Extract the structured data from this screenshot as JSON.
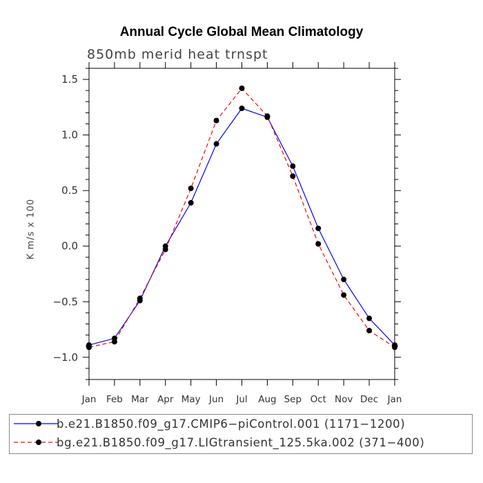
{
  "chart_data": {
    "type": "line",
    "title": "Annual Cycle Global Mean Climatology",
    "subtitle": "850mb merid heat trnspt",
    "xlabel": "",
    "ylabel": "K m/s x 100",
    "categories": [
      "Jan",
      "Feb",
      "Mar",
      "Apr",
      "May",
      "Jun",
      "Jul",
      "Aug",
      "Sep",
      "Oct",
      "Nov",
      "Dec",
      "Jan"
    ],
    "ylim": [
      -1.2,
      1.6
    ],
    "yticks": [
      -1.0,
      -0.5,
      0.0,
      0.5,
      1.0,
      1.5
    ],
    "ytick_labels": [
      "−1.0",
      "−0.5",
      "0.0",
      "0.5",
      "1.0",
      "1.5"
    ],
    "series": [
      {
        "name": "b.e21.B1850.f09_g17.CMIP6−piControl.001 (1171−1200)",
        "color": "#0000ff",
        "dash": "solid",
        "values": [
          -0.89,
          -0.83,
          -0.49,
          0.0,
          0.39,
          0.92,
          1.24,
          1.16,
          0.72,
          0.16,
          -0.3,
          -0.65,
          -0.89
        ]
      },
      {
        "name": "bg.e21.B1850.f09_g17.LIGtransient_125.5ka.002 (371−400)",
        "color": "#ff0000",
        "dash": "dashed",
        "values": [
          -0.91,
          -0.86,
          -0.47,
          -0.03,
          0.52,
          1.13,
          1.42,
          1.17,
          0.63,
          0.02,
          -0.44,
          -0.76,
          -0.91
        ]
      }
    ]
  }
}
